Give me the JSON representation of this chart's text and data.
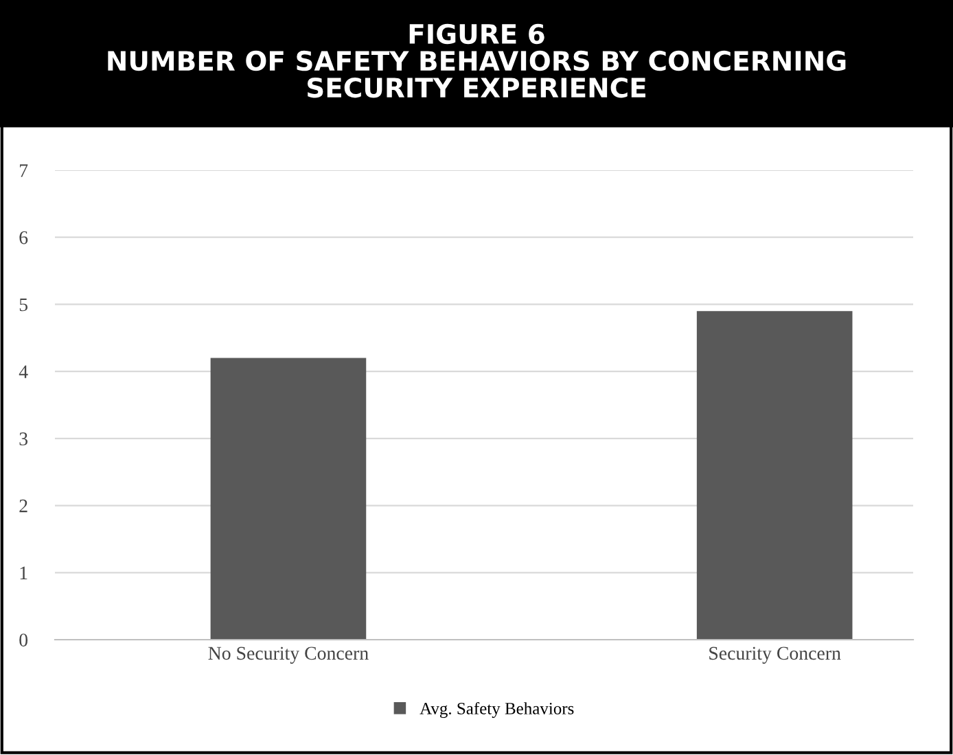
{
  "chart_data": {
    "type": "bar",
    "title": "FIGURE 6\nNUMBER OF SAFETY BEHAVIORS BY CONCERNING\nSECURITY EXPERIENCE",
    "categories": [
      "No Security Concern",
      "Security Concern"
    ],
    "series": [
      {
        "name": "Avg. Safety Behaviors",
        "color": "#595959",
        "values": [
          4.2,
          4.9
        ]
      }
    ],
    "ylim": [
      0,
      7
    ],
    "yticks": [
      0,
      1,
      2,
      3,
      4,
      5,
      6,
      7
    ],
    "grid": "y",
    "legend": "bottom"
  }
}
